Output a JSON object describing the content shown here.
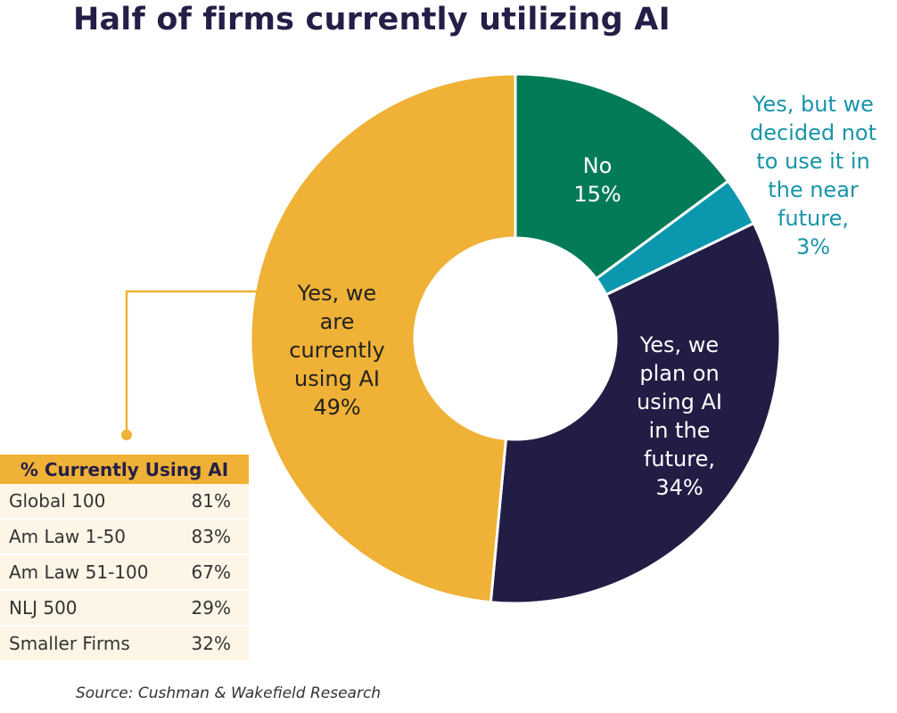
{
  "title": "Half of firms currently utilizing AI",
  "chart_data": {
    "type": "pie",
    "variant": "donut",
    "slices": [
      {
        "label": "No",
        "value": 15,
        "display": "15%",
        "color": "#047b58"
      },
      {
        "label": "Yes, but we decided not to use it in the near future,",
        "value": 3,
        "display": "3%",
        "color": "#0b98ae"
      },
      {
        "label": "Yes, we plan on using AI in the future,",
        "value": 34,
        "display": "34%",
        "color": "#221d45"
      },
      {
        "label": "Yes, we are currently using AI",
        "value": 49,
        "display": "49%",
        "color": "#efb136"
      }
    ],
    "labels": {
      "no": "No",
      "no_pct": "15%",
      "not_near_future": [
        "Yes, but we",
        "decided not",
        "to use it in",
        "the near",
        "future,"
      ],
      "not_near_future_pct": "3%",
      "plan_future": [
        "Yes, we",
        "plan on",
        "using AI",
        "in the",
        "future,"
      ],
      "plan_future_pct": "34%",
      "currently": [
        "Yes, we",
        "are",
        "currently",
        "using AI"
      ],
      "currently_pct": "49%"
    }
  },
  "breakdown_table": {
    "header": "% Currently Using AI",
    "rows": [
      {
        "name": "Global 100",
        "value": "81%"
      },
      {
        "name": "Am Law 1-50",
        "value": "83%"
      },
      {
        "name": "Am Law 51-100",
        "value": "67%"
      },
      {
        "name": "NLJ 500",
        "value": "29%"
      },
      {
        "name": "Smaller Firms",
        "value": "32%"
      }
    ]
  },
  "source": "Source: Cushman & Wakefield Research",
  "colors": {
    "title": "#241f47",
    "accent_gold": "#efb136",
    "table_bg": "#fdf5e6",
    "teal_label": "#1894a8"
  }
}
